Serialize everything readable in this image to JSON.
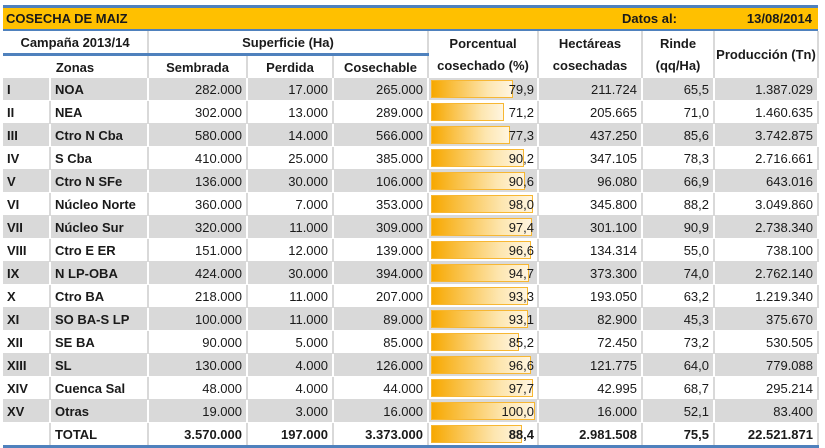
{
  "title": "COSECHA DE MAIZ",
  "date_label": "Datos al:",
  "date_value": "13/08/2014",
  "headers": {
    "campaign": "Campaña 2013/14",
    "surface": "Superficie (Ha)",
    "zones": "Zonas",
    "sown": "Sembrada",
    "lost": "Perdida",
    "harvestable": "Cosechable",
    "pct": "Porcentual cosechado (%)",
    "harvested": "Hectáreas cosechadas",
    "yield": "Rinde (qq/Ha)",
    "production": "Producción (Tn)"
  },
  "rows": [
    {
      "num": "I",
      "zone": "NOA",
      "sown": "282.000",
      "lost": "17.000",
      "harv": "265.000",
      "pct": "79,9",
      "pct_value": 79.9,
      "ha": "211.724",
      "yield": "65,5",
      "prod": "1.387.029"
    },
    {
      "num": "II",
      "zone": "NEA",
      "sown": "302.000",
      "lost": "13.000",
      "harv": "289.000",
      "pct": "71,2",
      "pct_value": 71.2,
      "ha": "205.665",
      "yield": "71,0",
      "prod": "1.460.635"
    },
    {
      "num": "III",
      "zone": "Ctro N Cba",
      "sown": "580.000",
      "lost": "14.000",
      "harv": "566.000",
      "pct": "77,3",
      "pct_value": 77.3,
      "ha": "437.250",
      "yield": "85,6",
      "prod": "3.742.875"
    },
    {
      "num": "IV",
      "zone": "S Cba",
      "sown": "410.000",
      "lost": "25.000",
      "harv": "385.000",
      "pct": "90,2",
      "pct_value": 90.2,
      "ha": "347.105",
      "yield": "78,3",
      "prod": "2.716.661"
    },
    {
      "num": "V",
      "zone": "Ctro N SFe",
      "sown": "136.000",
      "lost": "30.000",
      "harv": "106.000",
      "pct": "90,6",
      "pct_value": 90.6,
      "ha": "96.080",
      "yield": "66,9",
      "prod": "643.016"
    },
    {
      "num": "VI",
      "zone": "Núcleo Norte",
      "sown": "360.000",
      "lost": "7.000",
      "harv": "353.000",
      "pct": "98,0",
      "pct_value": 98.0,
      "ha": "345.800",
      "yield": "88,2",
      "prod": "3.049.860"
    },
    {
      "num": "VII",
      "zone": "Núcleo Sur",
      "sown": "320.000",
      "lost": "11.000",
      "harv": "309.000",
      "pct": "97,4",
      "pct_value": 97.4,
      "ha": "301.100",
      "yield": "90,9",
      "prod": "2.738.340"
    },
    {
      "num": "VIII",
      "zone": "Ctro E ER",
      "sown": "151.000",
      "lost": "12.000",
      "harv": "139.000",
      "pct": "96,6",
      "pct_value": 96.6,
      "ha": "134.314",
      "yield": "55,0",
      "prod": "738.100"
    },
    {
      "num": "IX",
      "zone": "N LP-OBA",
      "sown": "424.000",
      "lost": "30.000",
      "harv": "394.000",
      "pct": "94,7",
      "pct_value": 94.7,
      "ha": "373.300",
      "yield": "74,0",
      "prod": "2.762.140"
    },
    {
      "num": "X",
      "zone": "Ctro BA",
      "sown": "218.000",
      "lost": "11.000",
      "harv": "207.000",
      "pct": "93,3",
      "pct_value": 93.3,
      "ha": "193.050",
      "yield": "63,2",
      "prod": "1.219.340"
    },
    {
      "num": "XI",
      "zone": "SO BA-S LP",
      "sown": "100.000",
      "lost": "11.000",
      "harv": "89.000",
      "pct": "93,1",
      "pct_value": 93.1,
      "ha": "82.900",
      "yield": "45,3",
      "prod": "375.670"
    },
    {
      "num": "XII",
      "zone": "SE BA",
      "sown": "90.000",
      "lost": "5.000",
      "harv": "85.000",
      "pct": "85,2",
      "pct_value": 85.2,
      "ha": "72.450",
      "yield": "73,2",
      "prod": "530.505"
    },
    {
      "num": "XIII",
      "zone": "SL",
      "sown": "130.000",
      "lost": "4.000",
      "harv": "126.000",
      "pct": "96,6",
      "pct_value": 96.6,
      "ha": "121.775",
      "yield": "64,0",
      "prod": "779.088"
    },
    {
      "num": "XIV",
      "zone": "Cuenca Sal",
      "sown": "48.000",
      "lost": "4.000",
      "harv": "44.000",
      "pct": "97,7",
      "pct_value": 97.7,
      "ha": "42.995",
      "yield": "68,7",
      "prod": "295.214"
    },
    {
      "num": "XV",
      "zone": "Otras",
      "sown": "19.000",
      "lost": "3.000",
      "harv": "16.000",
      "pct": "100,0",
      "pct_value": 100.0,
      "ha": "16.000",
      "yield": "52,1",
      "prod": "83.400"
    }
  ],
  "total": {
    "num": "",
    "zone": "TOTAL",
    "sown": "3.570.000",
    "lost": "197.000",
    "harv": "3.373.000",
    "pct": "88,4",
    "pct_value": 88.4,
    "ha": "2.981.508",
    "yield": "75,5",
    "prod": "22.521.871"
  }
}
